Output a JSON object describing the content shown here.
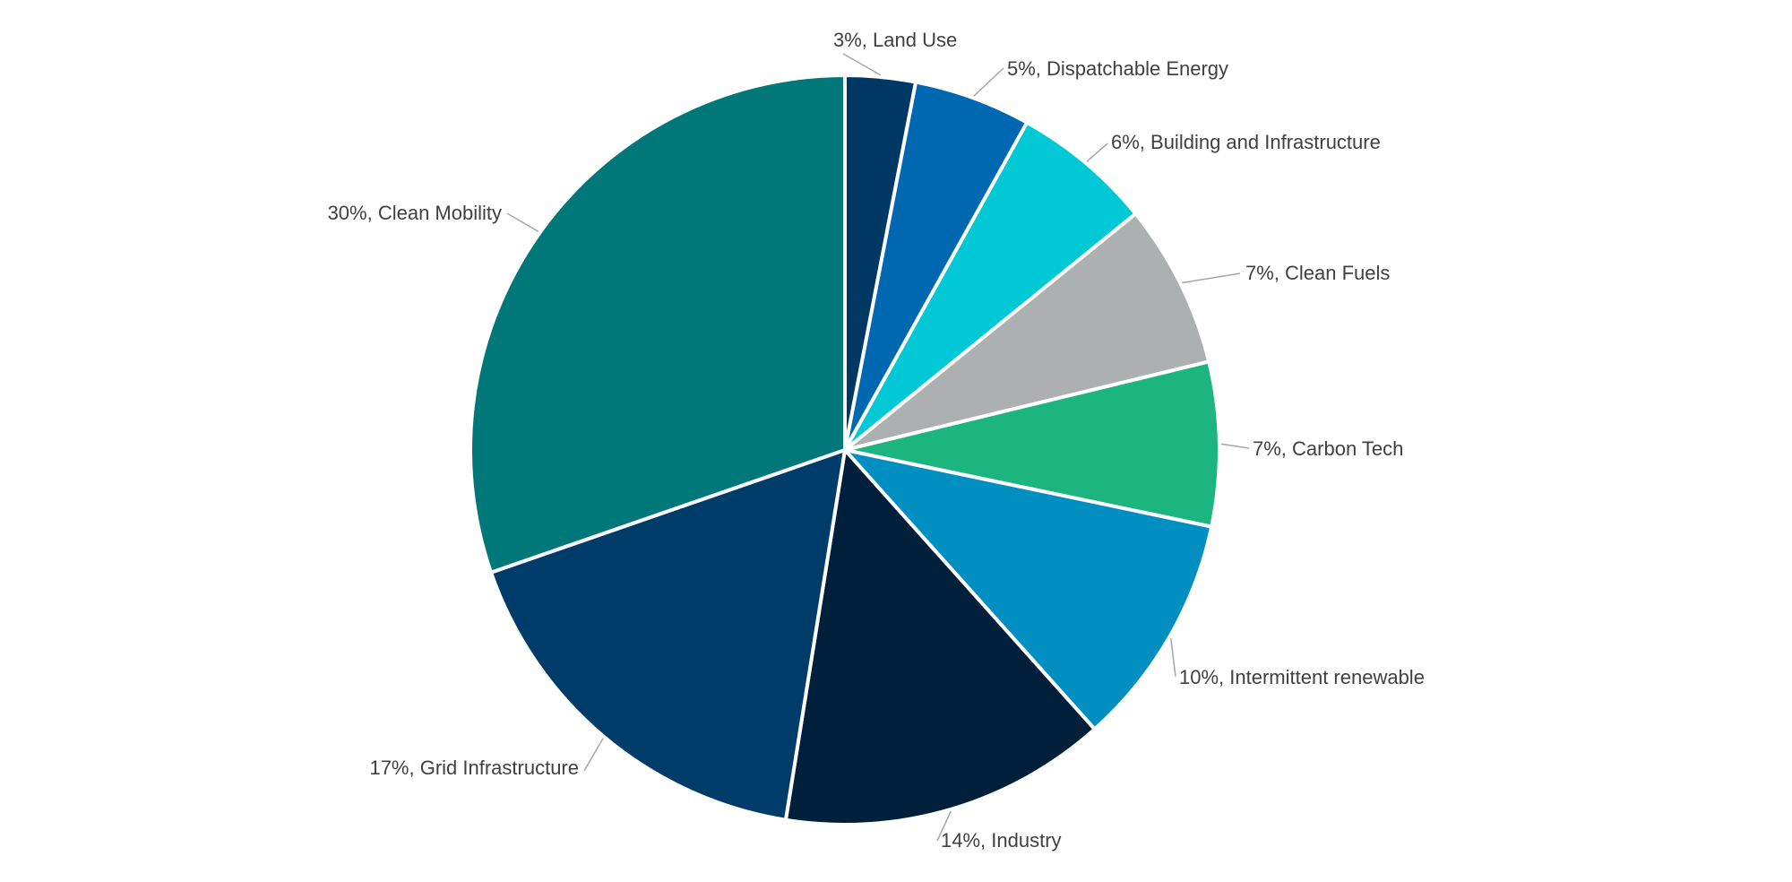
{
  "chart_data": {
    "type": "pie",
    "title": "",
    "start_angle_deg": 0,
    "direction": "clockwise",
    "label_format": "{value}%, {category}",
    "slices": [
      {
        "category": "Land Use",
        "value": 3,
        "label": "3%, Land Use",
        "color": "#003865"
      },
      {
        "category": "Dispatchable Energy",
        "value": 5,
        "label": "5%, Dispatchable Energy",
        "color": "#0067b1"
      },
      {
        "category": "Building and Infrastructure",
        "value": 6,
        "label": "6%, Building and Infrastructure",
        "color": "#00c8d4"
      },
      {
        "category": "Clean Fuels",
        "value": 7,
        "label": "7%, Clean Fuels",
        "color": "#acb0b0"
      },
      {
        "category": "Carbon Tech",
        "value": 7,
        "label": "7%, Carbon Tech",
        "color": "#1db57f"
      },
      {
        "category": "Intermittent renewable",
        "value": 10,
        "label": "10%, Intermittent renewable",
        "color": "#008fc0"
      },
      {
        "category": "Industry",
        "value": 14,
        "label": "14%, Industry",
        "color": "#001f3b"
      },
      {
        "category": "Grid Infrastructure",
        "value": 17,
        "label": "17%, Grid Infrastructure",
        "color": "#003c69"
      },
      {
        "category": "Clean Mobility",
        "value": 30,
        "label": "30%, Clean Mobility",
        "color": "#00787a"
      }
    ]
  }
}
